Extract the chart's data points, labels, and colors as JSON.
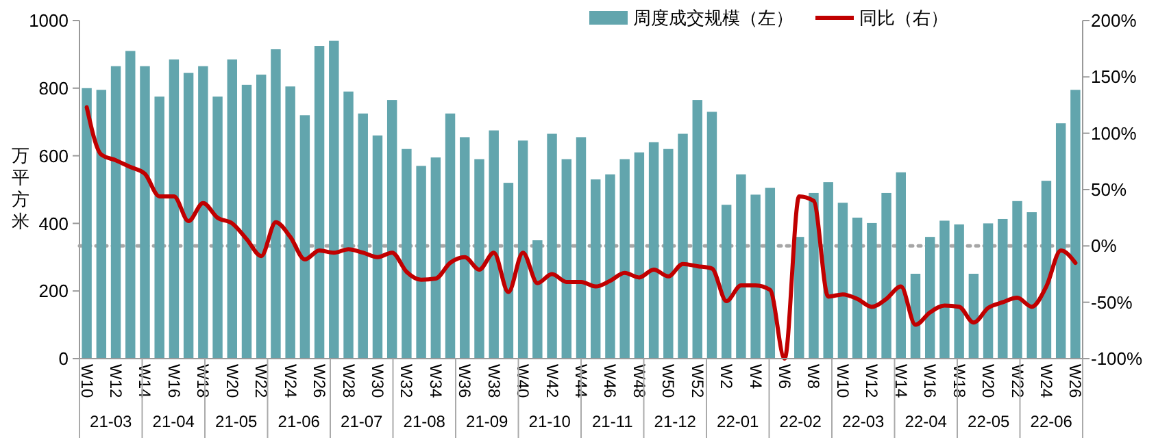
{
  "chart_data": {
    "type": "bar",
    "ylabel": "万平方米",
    "categories": [
      "W10",
      null,
      "W12",
      null,
      "W14",
      null,
      "W16",
      null,
      "W18",
      null,
      "W20",
      null,
      "W22",
      null,
      "W24",
      null,
      "W26",
      null,
      "W28",
      null,
      "W30",
      null,
      "W32",
      null,
      "W34",
      null,
      "W36",
      null,
      "W38",
      null,
      "W40",
      null,
      "W42",
      null,
      "W44",
      null,
      "W46",
      null,
      "W48",
      null,
      "W50",
      null,
      "W52",
      null,
      "W2",
      null,
      "W4",
      null,
      "W6",
      null,
      "W8",
      null,
      "W10",
      null,
      "W12",
      null,
      "W14",
      null,
      "W16",
      null,
      "W18",
      null,
      "W20",
      null,
      "W22",
      null,
      "W24",
      null,
      "W26"
    ],
    "series": [
      {
        "name": "周度成交规模（左）",
        "color": "#62a5ad",
        "values": [
          800,
          795,
          865,
          910,
          865,
          775,
          885,
          845,
          865,
          775,
          885,
          810,
          840,
          915,
          805,
          720,
          925,
          940,
          790,
          725,
          660,
          765,
          620,
          570,
          595,
          725,
          655,
          590,
          675,
          520,
          645,
          350,
          665,
          590,
          655,
          530,
          545,
          590,
          610,
          640,
          620,
          665,
          765,
          730,
          455,
          545,
          485,
          505,
          0,
          360,
          490,
          522,
          461,
          417,
          401,
          490,
          551,
          251,
          360,
          408,
          397,
          251,
          400,
          413,
          466,
          433,
          526,
          696,
          795
        ]
      },
      {
        "name": "同比（右）",
        "type": "line",
        "axis": "y2",
        "color": "#c00000",
        "values": [
          123,
          81,
          76,
          70,
          64,
          44,
          44,
          22,
          38,
          25,
          20,
          6,
          -9,
          21,
          8,
          -12,
          -4,
          -6,
          -3,
          -6,
          -10,
          -6,
          -23,
          -30,
          -29,
          -15,
          -10,
          -21,
          -6,
          -41,
          -6,
          -33,
          -25,
          -32,
          -32,
          -36,
          -31,
          -24,
          -28,
          -21,
          -27,
          -16,
          -18,
          -20,
          -49,
          -35,
          -35,
          -39,
          -100,
          44,
          40,
          -45,
          -43,
          -47,
          -54,
          -47,
          -36,
          -70,
          -59,
          -53,
          -54,
          -68,
          -55,
          -50,
          -46,
          -54,
          -36,
          -4,
          -15
        ]
      }
    ],
    "ylim": [
      0,
      1000
    ],
    "yticks": [
      0,
      200,
      400,
      600,
      800,
      1000
    ],
    "y2lim": [
      -100,
      200
    ],
    "y2ticks": [
      {
        "value": -100,
        "label": "-100%"
      },
      {
        "value": -50,
        "label": "-50%"
      },
      {
        "value": 0,
        "label": "0%"
      },
      {
        "value": 50,
        "label": "50%"
      },
      {
        "value": 100,
        "label": "100%"
      },
      {
        "value": 150,
        "label": "150%"
      },
      {
        "value": 200,
        "label": "200%"
      }
    ],
    "ref_lines": [
      {
        "axis": "y2",
        "value": 0,
        "color": "#a6a6a6",
        "line_style": "dotted"
      }
    ],
    "annotations": [
      "21-03",
      "21-04",
      "21-05",
      "21-06",
      "21-07",
      "21-08",
      "21-09",
      "21-10",
      "21-11",
      "21-12",
      "22-01",
      "22-02",
      "22-03",
      "22-04",
      "22-05",
      "22-06"
    ],
    "legend": "top",
    "grid": false,
    "marker": "none",
    "line_style": "solid"
  }
}
